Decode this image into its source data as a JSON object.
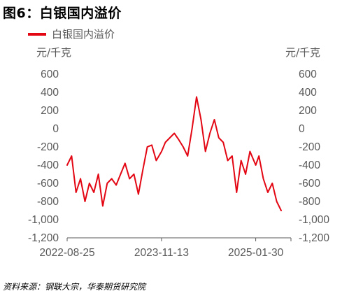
{
  "title": "图6：白银国内溢价",
  "legend": [
    "白银国内溢价"
  ],
  "units": {
    "left": "元/千克",
    "right": "元/千克"
  },
  "source": "资料来源：钢联大宗，华泰期货研究院",
  "colors": {
    "series": "#e30613",
    "axis": "#595959"
  },
  "chart_data": {
    "type": "line",
    "title": "图6：白银国内溢价",
    "series": [
      {
        "name": "白银国内溢价",
        "x": [
          "2022-08-25",
          "2022-09-15",
          "2022-10-06",
          "2022-10-27",
          "2022-11-17",
          "2022-12-08",
          "2022-12-29",
          "2023-01-19",
          "2023-02-09",
          "2023-03-02",
          "2023-03-23",
          "2023-04-13",
          "2023-05-04",
          "2023-05-25",
          "2023-06-15",
          "2023-07-06",
          "2023-07-27",
          "2023-08-17",
          "2023-09-07",
          "2023-09-28",
          "2023-10-19",
          "2023-11-13",
          "2023-12-01",
          "2023-12-22",
          "2024-01-12",
          "2024-02-02",
          "2024-02-23",
          "2024-03-15",
          "2024-04-05",
          "2024-04-26",
          "2024-05-17",
          "2024-06-07",
          "2024-06-28",
          "2024-07-19",
          "2024-08-09",
          "2024-08-30",
          "2024-09-20",
          "2024-10-11",
          "2024-11-01",
          "2024-11-22",
          "2024-12-13",
          "2025-01-03",
          "2025-01-30",
          "2025-02-14",
          "2025-03-07",
          "2025-03-28",
          "2025-04-18",
          "2025-05-09",
          "2025-05-30"
        ],
        "y": [
          -400,
          -300,
          -700,
          -550,
          -800,
          -600,
          -700,
          -500,
          -850,
          -600,
          -550,
          -620,
          -500,
          -380,
          -550,
          -500,
          -720,
          -450,
          -200,
          -180,
          -350,
          -250,
          -150,
          -100,
          -50,
          -120,
          -200,
          -300,
          0,
          350,
          100,
          -250,
          -50,
          100,
          -100,
          -150,
          -350,
          -300,
          -700,
          -350,
          -500,
          -250,
          -400,
          -300,
          -550,
          -700,
          -600,
          -800,
          -900
        ]
      }
    ],
    "xticks": [
      "2022-08-25",
      "2023-11-13",
      "2025-01-30"
    ],
    "yticks": [
      600,
      400,
      200,
      0,
      -200,
      -400,
      -600,
      -800,
      -1000,
      -1200
    ],
    "ytick_labels": [
      "600",
      "400",
      "200",
      "0",
      "-200",
      "-400",
      "-600",
      "-800",
      "-1,000",
      "-1,200"
    ],
    "ylim": [
      -1200,
      600
    ],
    "ylabel_left": "元/千克",
    "ylabel_right": "元/千克",
    "grid": false,
    "legend_position": "top-left"
  }
}
